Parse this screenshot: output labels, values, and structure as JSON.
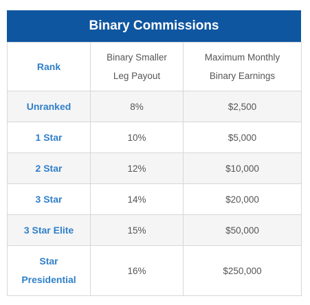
{
  "title": "Binary Commissions",
  "headers": {
    "rank": "Rank",
    "payout_line1": "Binary Smaller",
    "payout_line2": "Leg Payout",
    "earnings_line1": "Maximum Monthly",
    "earnings_line2": "Binary Earnings"
  },
  "rows": [
    {
      "rank": "Unranked",
      "payout": "8%",
      "earnings": "$2,500"
    },
    {
      "rank": "1 Star",
      "payout": "10%",
      "earnings": "$5,000"
    },
    {
      "rank": "2 Star",
      "payout": "12%",
      "earnings": "$10,000"
    },
    {
      "rank": "3 Star",
      "payout": "14%",
      "earnings": "$20,000"
    },
    {
      "rank": "3 Star Elite",
      "payout": "15%",
      "earnings": "$50,000"
    },
    {
      "rank_line1": "Star",
      "rank_line2": "Presidential",
      "payout": "16%",
      "earnings": "$250,000"
    }
  ],
  "colors": {
    "title_bar": "#0f56a0",
    "rank_text": "#2f7fc8",
    "body_text": "#555555",
    "shaded_row": "#f5f5f5",
    "border": "#d7d7d7"
  }
}
